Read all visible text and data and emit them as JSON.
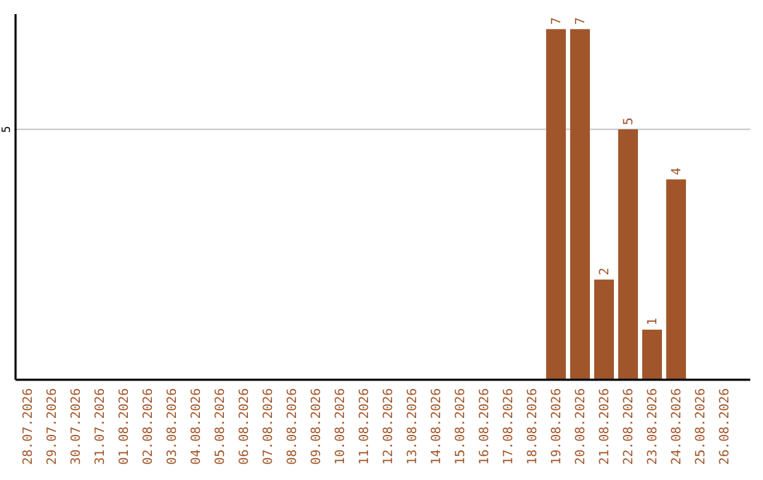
{
  "chart_data": {
    "type": "bar",
    "categories": [
      "28.07.2026",
      "29.07.2026",
      "30.07.2026",
      "31.07.2026",
      "01.08.2026",
      "02.08.2026",
      "03.08.2026",
      "04.08.2026",
      "05.08.2026",
      "06.08.2026",
      "07.08.2026",
      "08.08.2026",
      "09.08.2026",
      "10.08.2026",
      "11.08.2026",
      "12.08.2026",
      "13.08.2026",
      "14.08.2026",
      "15.08.2026",
      "16.08.2026",
      "17.08.2026",
      "18.08.2026",
      "19.08.2026",
      "20.08.2026",
      "21.08.2026",
      "22.08.2026",
      "23.08.2026",
      "24.08.2026",
      "25.08.2026",
      "26.08.2026"
    ],
    "values": [
      null,
      null,
      null,
      null,
      null,
      null,
      null,
      null,
      null,
      null,
      null,
      null,
      null,
      null,
      null,
      null,
      null,
      null,
      null,
      null,
      null,
      null,
      7,
      7,
      2,
      5,
      1,
      4,
      null,
      null
    ],
    "data_labels": true,
    "color": "#a0562a",
    "ylim": [
      0,
      7.3
    ],
    "yticks": [
      5
    ],
    "grid": "y"
  }
}
